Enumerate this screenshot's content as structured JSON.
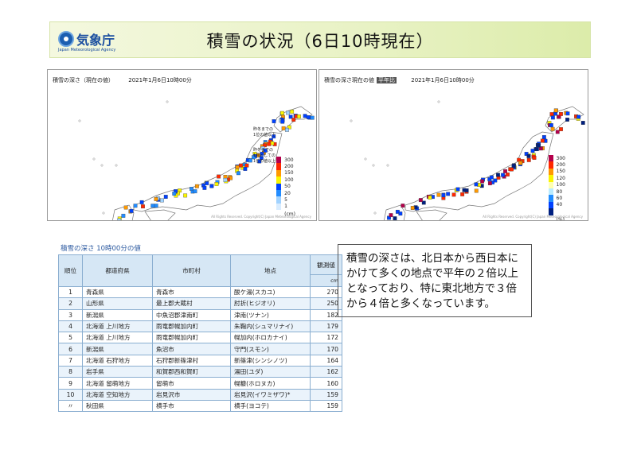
{
  "header": {
    "logo_text": "気象庁",
    "logo_sub": "Japan Meteorological Agency",
    "title": "積雪の状況（6日10時現在）"
  },
  "map_left": {
    "label": "積雪の深さ（現在の値）",
    "time": "2021年1月6日10時00分",
    "note_1": [
      "昨冬までの",
      "1位の値以上"
    ],
    "note_2": [
      "昨冬までの",
      "1月としての",
      "1位の値以上"
    ],
    "unit": "(cm)",
    "copyright": "All Rights Reserved. Copyright(C) Japan Meteorological Agency",
    "legend": [
      {
        "label": "300",
        "color": "#b4004b"
      },
      {
        "label": "200",
        "color": "#ff2800"
      },
      {
        "label": "150",
        "color": "#ff9900"
      },
      {
        "label": "100",
        "color": "#faf500"
      },
      {
        "label": "50",
        "color": "#0041ff"
      },
      {
        "label": "20",
        "color": "#218cff"
      },
      {
        "label": "5",
        "color": "#a0d2ff"
      },
      {
        "label": "1",
        "color": "#d8ecff"
      }
    ]
  },
  "map_right": {
    "label": "積雪の深さ現在の値",
    "tag": "平年比",
    "time": "2021年1月6日10時00分",
    "unit": "(%)",
    "copyright": "All Rights Reserved. Copyright(C) Japan Meteorological Agency",
    "legend": [
      {
        "label": "300",
        "color": "#b4004b"
      },
      {
        "label": "200",
        "color": "#ff2800"
      },
      {
        "label": "150",
        "color": "#ff9900"
      },
      {
        "label": "120",
        "color": "#faf500"
      },
      {
        "label": "100",
        "color": "#ffffb0"
      },
      {
        "label": "80",
        "color": "#b9ebff"
      },
      {
        "label": "60",
        "color": "#218cff"
      },
      {
        "label": "40",
        "color": "#0041ff"
      },
      {
        "label": "",
        "color": "#002080"
      }
    ]
  },
  "table": {
    "title": "積雪の深さ 10時00分の値",
    "headers": {
      "rank": "順位",
      "pref": "都道府県",
      "city": "市町村",
      "point": "地点",
      "value": "観測値",
      "unit": "cm"
    },
    "rows": [
      {
        "rank": "1",
        "pref": "青森県",
        "city": "青森市",
        "point": "酸ケ湯(スカユ)",
        "value": "270"
      },
      {
        "rank": "2",
        "pref": "山形県",
        "city": "最上郡大蔵村",
        "point": "肘折(ヒジオリ)",
        "value": "250"
      },
      {
        "rank": "3",
        "pref": "新潟県",
        "city": "中魚沼郡津南町",
        "point": "津南(ツナン)",
        "value": "182"
      },
      {
        "rank": "4",
        "pref": "北海道 上川地方",
        "city": "雨竜郡幌加内町",
        "point": "朱鞠内(シュマリナイ)",
        "value": "179"
      },
      {
        "rank": "5",
        "pref": "北海道 上川地方",
        "city": "雨竜郡幌加内町",
        "point": "幌加内(ホロカナイ)",
        "value": "172"
      },
      {
        "rank": "6",
        "pref": "新潟県",
        "city": "魚沼市",
        "point": "守門(スモン)",
        "value": "170"
      },
      {
        "rank": "7",
        "pref": "北海道 石狩地方",
        "city": "石狩郡新篠津村",
        "point": "新篠津(シンシノツ)",
        "value": "164"
      },
      {
        "rank": "8",
        "pref": "岩手県",
        "city": "和賀郡西和賀町",
        "point": "湯田(ユダ)",
        "value": "162"
      },
      {
        "rank": "9",
        "pref": "北海道 留萌地方",
        "city": "留萌市",
        "point": "幌糠(ホロヌカ)",
        "value": "160"
      },
      {
        "rank": "10",
        "pref": "北海道 空知地方",
        "city": "岩見沢市",
        "point": "岩見沢(イワミザワ)*",
        "value": "159"
      },
      {
        "rank": "〃",
        "pref": "秋田県",
        "city": "横手市",
        "point": "横手(ヨコテ)",
        "value": "159"
      }
    ]
  },
  "comment": "積雪の深さは、北日本から西日本にかけて多くの地点で平年の２倍以上となっており、特に東北地方で３倍から４倍と多くなっています。"
}
